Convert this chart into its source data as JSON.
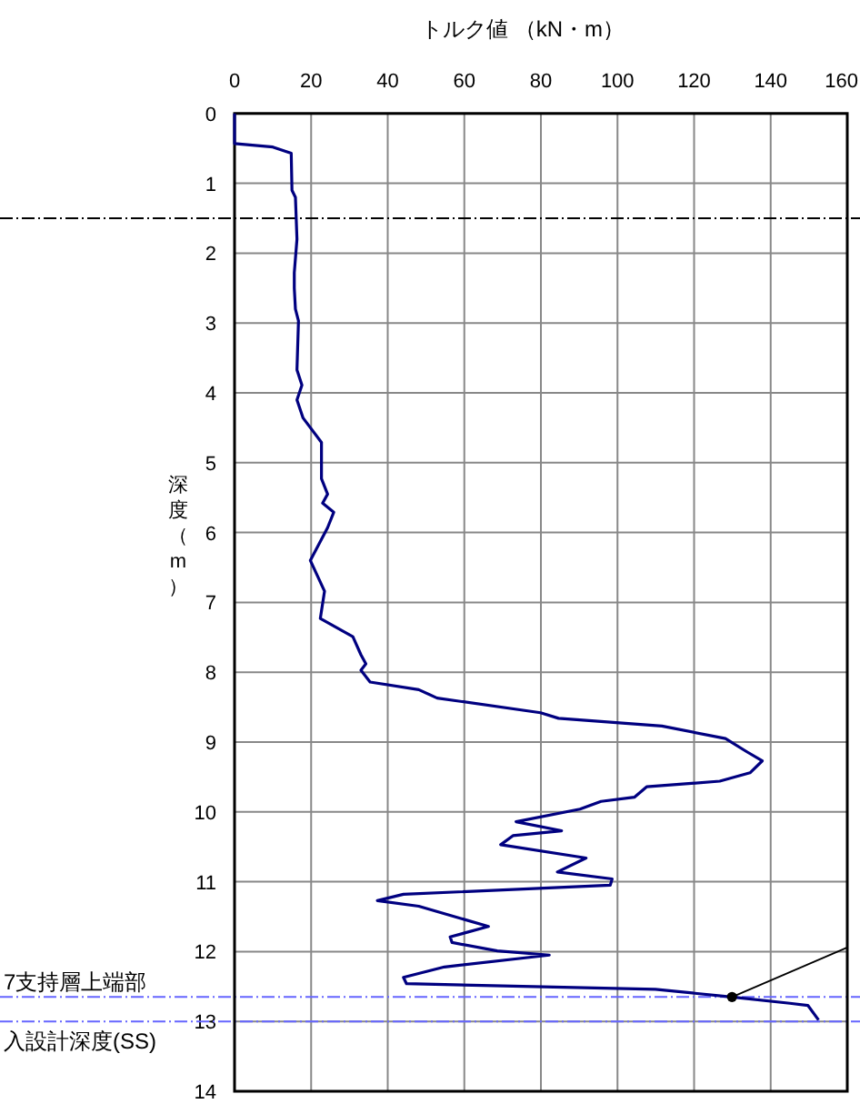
{
  "chart_data": {
    "type": "line",
    "xlabel": "トルク値 （kN・m）",
    "ylabel": "深度（m）",
    "xlim": [
      0,
      160
    ],
    "ylim": [
      14,
      0
    ],
    "xticks": [
      0,
      20,
      40,
      60,
      80,
      100,
      120,
      140,
      160
    ],
    "yticks": [
      0,
      1,
      2,
      3,
      4,
      5,
      6,
      7,
      8,
      9,
      10,
      11,
      12,
      13,
      14
    ],
    "grid": true,
    "series": [
      {
        "color": "#000080",
        "x": [
          0,
          0,
          10,
          14.8,
          15,
          15.9,
          16.3,
          15.6,
          15.6,
          15.9,
          16.7,
          16.3,
          17.6,
          16.3,
          17.9,
          22.7,
          22.7,
          24.3,
          23.0,
          25.9,
          24.3,
          19.8,
          23.5,
          22.4,
          30.9,
          33.0,
          34.3,
          33.0,
          35.4,
          48.1,
          52.9,
          79.9,
          84.6,
          111.6,
          128.2,
          133.8,
          137.8,
          134.6,
          126.7,
          107.6,
          104.4,
          95.7,
          90.2,
          73.5,
          85.4,
          72.7,
          69.5,
          91.8,
          84.3,
          98.6,
          98.1,
          44.1,
          37.3,
          48.1,
          66.3,
          56.3,
          56.8,
          68.6,
          82.2,
          54.8,
          44.1,
          44.9,
          109.9,
          129.9,
          145.0,
          149.7,
          152.5
        ],
        "values": [
          0,
          0.43,
          0.48,
          0.57,
          1.1,
          1.2,
          1.8,
          2.28,
          2.5,
          2.8,
          2.97,
          3.67,
          3.89,
          4.1,
          4.36,
          4.71,
          5.23,
          5.45,
          5.58,
          5.71,
          5.93,
          6.4,
          6.84,
          7.23,
          7.49,
          7.75,
          7.88,
          7.97,
          8.14,
          8.25,
          8.37,
          8.58,
          8.66,
          8.77,
          8.95,
          9.14,
          9.27,
          9.44,
          9.56,
          9.64,
          9.79,
          9.85,
          9.96,
          10.14,
          10.27,
          10.34,
          10.47,
          10.66,
          10.86,
          10.96,
          11.05,
          11.18,
          11.27,
          11.35,
          11.64,
          11.79,
          11.87,
          11.99,
          12.05,
          12.22,
          12.37,
          12.46,
          12.54,
          12.65,
          12.74,
          12.77,
          12.98
        ]
      },
      {
        "type": "scatter",
        "marker": "circle",
        "color": "#000000",
        "x": [
          129.9
        ],
        "values": [
          12.65
        ]
      },
      {
        "type": "line",
        "color": "#000000",
        "x": [
          129.9,
          160
        ],
        "values": [
          12.65,
          11.94
        ]
      }
    ],
    "ref_lines": [
      {
        "axis": "y",
        "value": 1.5,
        "color": "#000000",
        "line_style": "dashdot"
      },
      {
        "axis": "y",
        "value": 12.65,
        "label": "7支持層上端部",
        "color": "#6666ff",
        "line_style": "dashdot"
      },
      {
        "axis": "y",
        "value": 13,
        "label": "入設計深度(SS)",
        "color": "#6666ff",
        "line_style": "dashdot"
      }
    ]
  }
}
